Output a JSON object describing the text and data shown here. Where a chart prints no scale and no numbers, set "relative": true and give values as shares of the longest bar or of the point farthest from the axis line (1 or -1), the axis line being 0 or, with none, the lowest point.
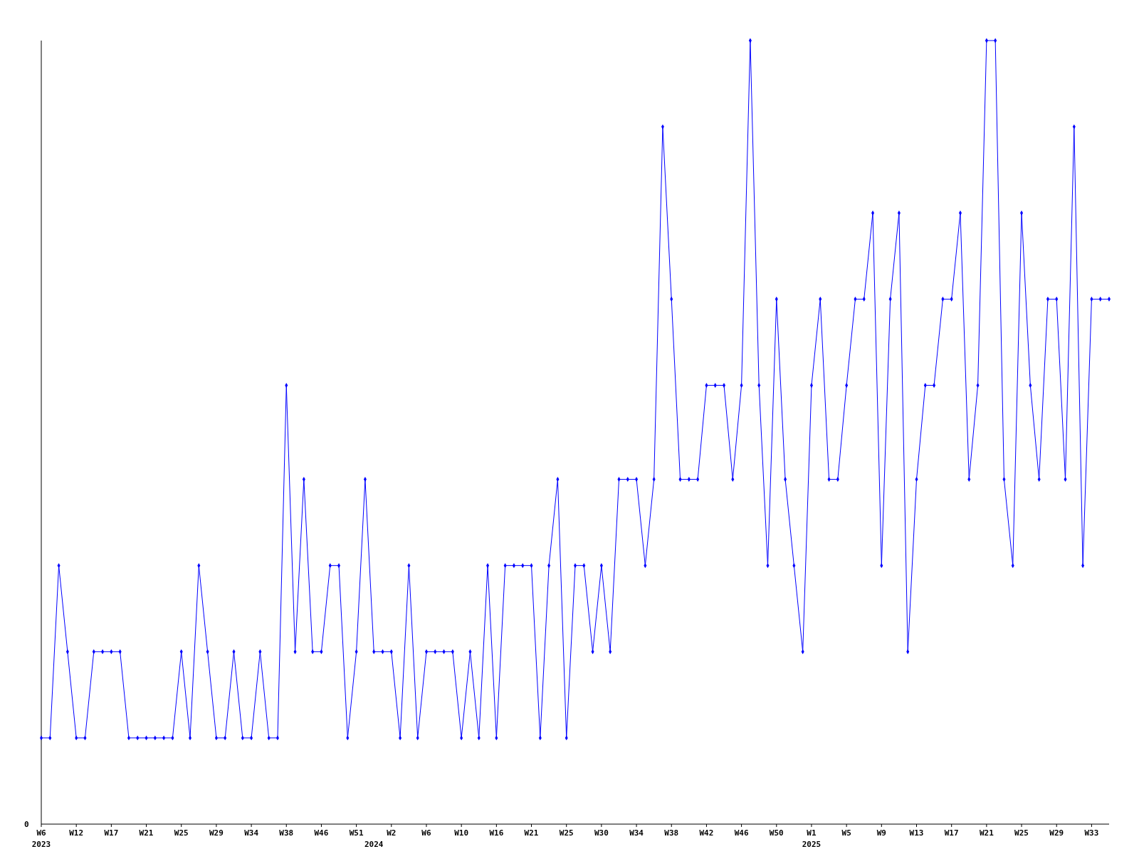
{
  "chart_data": {
    "type": "line",
    "relative": true,
    "marker": "diamond",
    "annotations": [
      "0"
    ],
    "categories": [
      "W6\n2023",
      null,
      null,
      null,
      "W12",
      null,
      null,
      null,
      "W17",
      null,
      null,
      null,
      "W21",
      null,
      null,
      null,
      "W25",
      null,
      null,
      null,
      "W29",
      null,
      null,
      null,
      "W34",
      null,
      null,
      null,
      "W38",
      null,
      null,
      null,
      "W46",
      null,
      null,
      null,
      "W51",
      null,
      "\n2024",
      null,
      "W2",
      null,
      null,
      null,
      "W6",
      null,
      null,
      null,
      "W10",
      null,
      null,
      null,
      "W16",
      null,
      null,
      null,
      "W21",
      null,
      null,
      null,
      "W25",
      null,
      null,
      null,
      "W30",
      null,
      null,
      null,
      "W34",
      null,
      null,
      null,
      "W38",
      null,
      null,
      null,
      "W42",
      null,
      null,
      null,
      "W46",
      null,
      null,
      null,
      "W50",
      null,
      null,
      null,
      "W1\n2025",
      null,
      null,
      null,
      "W5",
      null,
      null,
      null,
      "W9",
      null,
      null,
      null,
      "W13",
      null,
      null,
      null,
      "W17",
      null,
      null,
      null,
      "W21",
      null,
      null,
      null,
      "W25",
      null,
      null,
      null,
      "W29",
      null,
      null,
      null,
      "W33",
      null,
      null
    ],
    "series": [
      {
        "color": "#0000ff",
        "values": [
          0.11,
          0.11,
          0.33,
          0.22,
          0.11,
          0.11,
          0.22,
          0.22,
          0.22,
          0.22,
          0.11,
          0.11,
          0.11,
          0.11,
          0.11,
          0.11,
          0.22,
          0.11,
          0.33,
          0.22,
          0.11,
          0.11,
          0.22,
          0.11,
          0.11,
          0.22,
          0.11,
          0.11,
          0.56,
          0.22,
          0.44,
          0.22,
          0.22,
          0.33,
          0.33,
          0.11,
          0.22,
          0.44,
          0.22,
          0.22,
          0.22,
          0.11,
          0.33,
          0.11,
          0.22,
          0.22,
          0.22,
          0.22,
          0.11,
          0.22,
          0.11,
          0.33,
          0.11,
          0.33,
          0.33,
          0.33,
          0.33,
          0.11,
          0.33,
          0.44,
          0.11,
          0.33,
          0.33,
          0.22,
          0.33,
          0.22,
          0.44,
          0.44,
          0.44,
          0.33,
          0.44,
          0.89,
          0.67,
          0.44,
          0.44,
          0.44,
          0.56,
          0.56,
          0.56,
          0.44,
          0.56,
          1,
          0.56,
          0.33,
          0.67,
          0.44,
          0.33,
          0.22,
          0.56,
          0.67,
          0.44,
          0.44,
          0.56,
          0.67,
          0.67,
          0.78,
          0.33,
          0.67,
          0.78,
          0.22,
          0.44,
          0.56,
          0.56,
          0.67,
          0.67,
          0.78,
          0.44,
          0.56,
          1,
          1,
          0.44,
          0.33,
          0.78,
          0.56,
          0.44,
          0.67,
          0.67,
          0.44,
          0.89,
          0.33,
          0.67,
          0.67,
          0.67
        ]
      }
    ]
  }
}
